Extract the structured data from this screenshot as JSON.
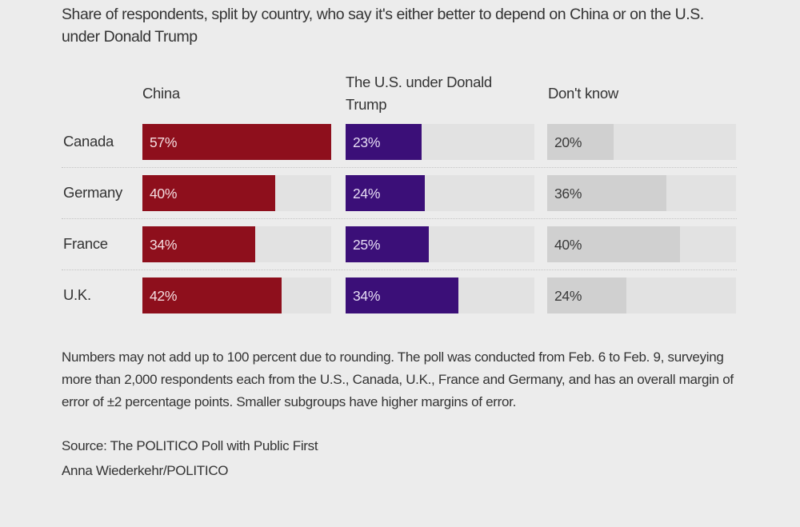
{
  "title": "Share of respondents, split by country, who say it's either better to depend on China or on the U.S. under Donald Trump",
  "chart_data": {
    "type": "bar",
    "categories": [
      "Canada",
      "Germany",
      "France",
      "U.K."
    ],
    "series": [
      {
        "name": "China",
        "values": [
          57,
          40,
          34,
          42
        ],
        "labels": [
          "57%",
          "40%",
          "34%",
          "42%"
        ],
        "color": "#8e0f1c",
        "text_color": "#f4dde0"
      },
      {
        "name": "The U.S. under Donald Trump",
        "values": [
          23,
          24,
          25,
          34
        ],
        "labels": [
          "23%",
          "24%",
          "25%",
          "34%"
        ],
        "color": "#3b0f78",
        "text_color": "#e6dcf4"
      },
      {
        "name": "Don't know",
        "values": [
          20,
          36,
          40,
          24
        ],
        "labels": [
          "20%",
          "36%",
          "40%",
          "24%"
        ],
        "color": "#d0d0d0",
        "text_color": "#3a3a3a"
      }
    ],
    "unit": "%",
    "xlim": [
      0,
      57
    ],
    "track_color": "#e2e2e2"
  },
  "notes": "Numbers may not add up to 100 percent due to rounding. The poll was conducted from Feb. 6 to Feb. 9, surveying more than 2,000 respondents each from the U.S., Canada, U.K., France and Germany, and has an overall margin of error of ±2 percentage points. Smaller subgroups have higher margins of error.",
  "source": "Source: The POLITICO Poll with Public First",
  "credit": "Anna Wiederkehr/POLITICO"
}
